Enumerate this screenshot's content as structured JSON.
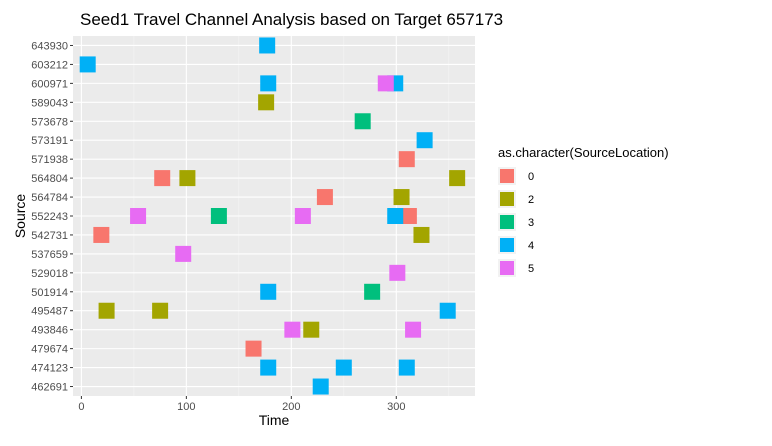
{
  "chart_data": {
    "type": "scatter",
    "title": "Seed1 Travel Channel Analysis based on Target 657173",
    "xlabel": "Time",
    "ylabel": "Source",
    "xlim": [
      -8,
      375
    ],
    "x_ticks": [
      0,
      100,
      200,
      300
    ],
    "grid": true,
    "legend_title": "as.character(SourceLocation)",
    "legend_position": "right",
    "categories": [
      "643930",
      "603212",
      "600971",
      "589043",
      "573678",
      "573191",
      "571938",
      "564804",
      "564784",
      "552243",
      "542731",
      "537659",
      "529018",
      "501914",
      "495487",
      "493846",
      "479674",
      "474123",
      "462691"
    ],
    "series": [
      {
        "name": "0",
        "color": "#F8766D",
        "points": [
          {
            "x": 310,
            "y": "571938"
          },
          {
            "x": 77,
            "y": "564804"
          },
          {
            "x": 232,
            "y": "564784"
          },
          {
            "x": 312,
            "y": "552243"
          },
          {
            "x": 19,
            "y": "542731"
          },
          {
            "x": 164,
            "y": "479674"
          }
        ]
      },
      {
        "name": "2",
        "color": "#A3A500",
        "points": [
          {
            "x": 176,
            "y": "589043"
          },
          {
            "x": 101,
            "y": "564804"
          },
          {
            "x": 358,
            "y": "564804"
          },
          {
            "x": 305,
            "y": "564784"
          },
          {
            "x": 324,
            "y": "542731"
          },
          {
            "x": 24,
            "y": "495487"
          },
          {
            "x": 75,
            "y": "495487"
          },
          {
            "x": 219,
            "y": "493846"
          }
        ]
      },
      {
        "name": "3",
        "color": "#00BF7D",
        "points": [
          {
            "x": 268,
            "y": "573678"
          },
          {
            "x": 131,
            "y": "552243"
          },
          {
            "x": 277,
            "y": "501914"
          }
        ]
      },
      {
        "name": "4",
        "color": "#00B0F6",
        "points": [
          {
            "x": 177,
            "y": "643930"
          },
          {
            "x": 6,
            "y": "603212"
          },
          {
            "x": 178,
            "y": "600971"
          },
          {
            "x": 299,
            "y": "600971"
          },
          {
            "x": 327,
            "y": "573191"
          },
          {
            "x": 299,
            "y": "552243"
          },
          {
            "x": 178,
            "y": "501914"
          },
          {
            "x": 349,
            "y": "495487"
          },
          {
            "x": 178,
            "y": "474123"
          },
          {
            "x": 250,
            "y": "474123"
          },
          {
            "x": 310,
            "y": "474123"
          },
          {
            "x": 228,
            "y": "462691"
          }
        ]
      },
      {
        "name": "5",
        "color": "#E76BF3",
        "points": [
          {
            "x": 290,
            "y": "600971"
          },
          {
            "x": 54,
            "y": "552243"
          },
          {
            "x": 211,
            "y": "552243"
          },
          {
            "x": 97,
            "y": "537659"
          },
          {
            "x": 301,
            "y": "529018"
          },
          {
            "x": 201,
            "y": "493846"
          },
          {
            "x": 316,
            "y": "493846"
          }
        ]
      }
    ]
  }
}
